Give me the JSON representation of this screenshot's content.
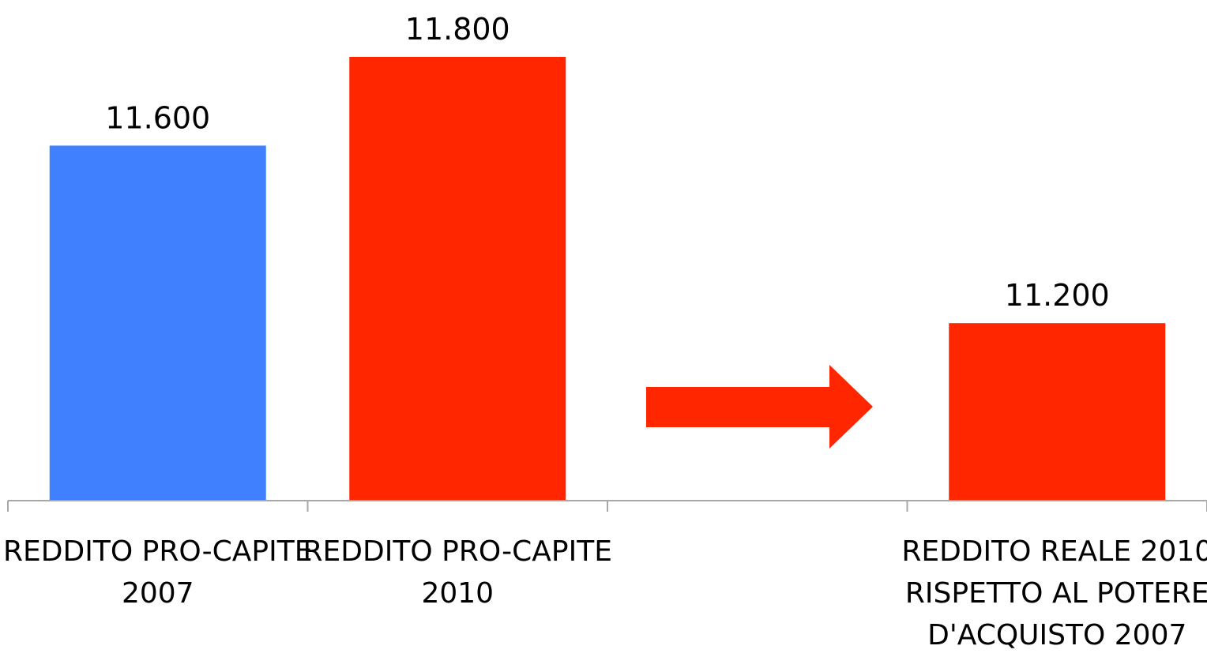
{
  "chart_data": {
    "type": "bar",
    "categories": [
      [
        "REDDITO PRO-CAPITE",
        "2007"
      ],
      [
        "REDDITO PRO-CAPITE",
        "2010"
      ],
      [],
      [
        "REDDITO REALE 2010",
        "RISPETTO AL POTERE",
        "D'ACQUISTO 2007"
      ]
    ],
    "values": [
      11600,
      11800,
      null,
      11200
    ],
    "value_labels": [
      "11.600",
      "11.800",
      "",
      "11.200"
    ],
    "bar_colors": [
      "#4080ff",
      "#ff2600",
      "",
      "#ff2600"
    ],
    "arrow": {
      "between_categories": [
        1,
        3
      ],
      "color": "#ff2600",
      "direction": "right"
    },
    "axis_color": "#a8a8a8",
    "ylim": [
      0,
      12000
    ],
    "grid": false,
    "legend": "none",
    "title": "",
    "xlabel": "",
    "ylabel": ""
  }
}
